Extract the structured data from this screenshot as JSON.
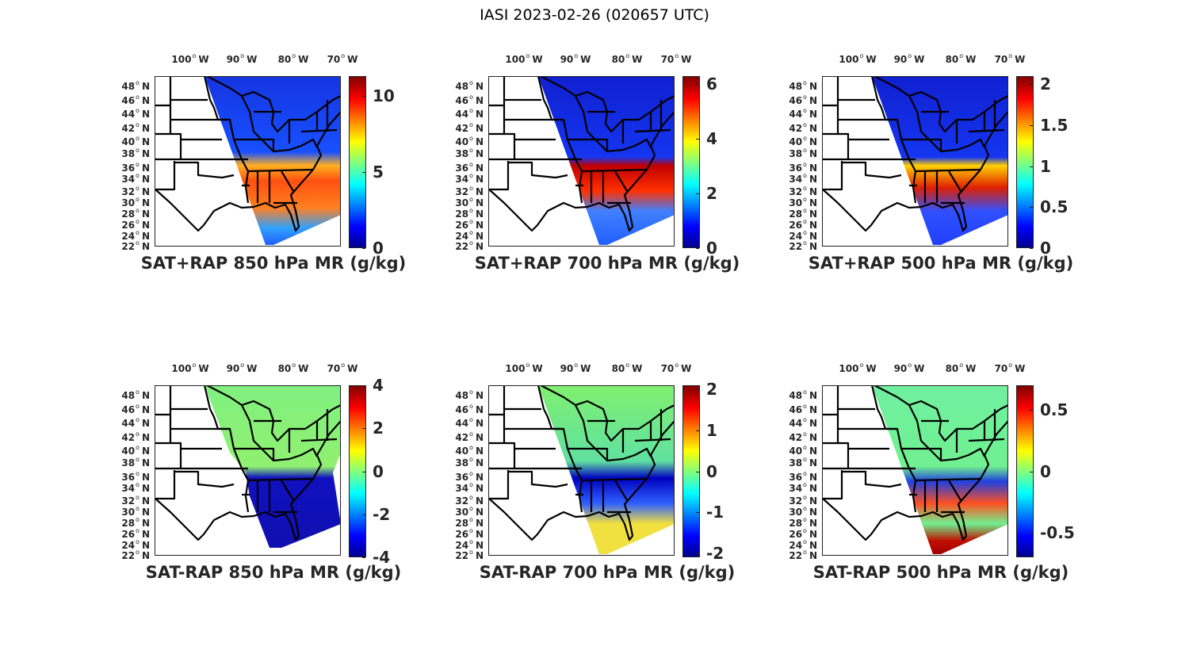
{
  "title": "IASI 2023-02-26 (020657 UTC)",
  "lon_labels": [
    "100",
    "90",
    "80",
    "70"
  ],
  "lon_suffix": "W",
  "lat_labels": [
    "48",
    "46",
    "44",
    "42",
    "40",
    "38",
    "36",
    "34",
    "32",
    "30",
    "28",
    "26",
    "24",
    "22"
  ],
  "lat_suffix": "N",
  "panels": [
    {
      "caption": "SAT+RAP 850 hPa MR (g/kg)",
      "colorbar": {
        "range": [
          0,
          11.3
        ],
        "ticks": [
          "0",
          "5",
          "10"
        ],
        "tick_values": [
          0,
          5,
          10
        ]
      }
    },
    {
      "caption": "SAT+RAP 700 hPa MR (g/kg)",
      "colorbar": {
        "range": [
          0,
          6.3
        ],
        "ticks": [
          "0",
          "2",
          "4",
          "6"
        ],
        "tick_values": [
          0,
          2,
          4,
          6
        ]
      }
    },
    {
      "caption": "SAT+RAP 500 hPa MR (g/kg)",
      "colorbar": {
        "range": [
          0,
          2.1
        ],
        "ticks": [
          "0",
          "0.5",
          "1",
          "1.5",
          "2"
        ],
        "tick_values": [
          0,
          0.5,
          1,
          1.5,
          2
        ]
      }
    },
    {
      "caption": "SAT-RAP 850 hPa MR (g/kg)",
      "colorbar": {
        "range": [
          -4,
          4
        ],
        "ticks": [
          "-4",
          "-2",
          "0",
          "2",
          "4"
        ],
        "tick_values": [
          -4,
          -2,
          0,
          2,
          4
        ]
      }
    },
    {
      "caption": "SAT-RAP 700 hPa MR (g/kg)",
      "colorbar": {
        "range": [
          -2.1,
          2.1
        ],
        "ticks": [
          "-2",
          "-1",
          "0",
          "1",
          "2"
        ],
        "tick_values": [
          -2,
          -1,
          0,
          1,
          2
        ]
      }
    },
    {
      "caption": "SAT-RAP 500 hPa MR (g/kg)",
      "colorbar": {
        "range": [
          -0.7,
          0.7
        ],
        "ticks": [
          "-0.5",
          "0",
          "0.5"
        ],
        "tick_values": [
          -0.5,
          0,
          0.5
        ]
      }
    }
  ]
}
